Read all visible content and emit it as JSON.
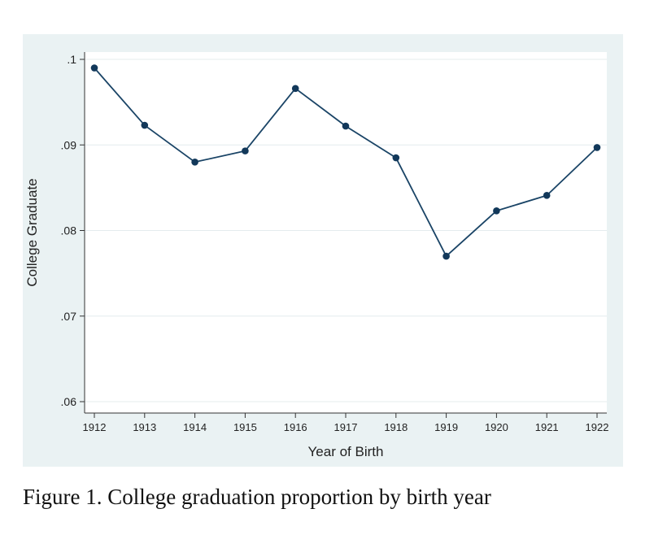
{
  "caption": "Figure 1.  College graduation proportion by birth year",
  "colors": {
    "line": "#1a4466",
    "marker": "#12385a",
    "panel": "#eaf2f3",
    "plot_area": "#ffffff",
    "grid": "#e4ecee"
  },
  "chart_data": {
    "type": "line",
    "title": "",
    "xlabel": "Year of Birth",
    "ylabel": "College Graduate",
    "x": [
      1912,
      1913,
      1914,
      1915,
      1916,
      1917,
      1918,
      1919,
      1920,
      1921,
      1922
    ],
    "x_tick_labels": [
      "1912",
      "1913",
      "1914",
      "1915",
      "1916",
      "1917",
      "1918",
      "1919",
      "1920",
      "1921",
      "1922"
    ],
    "y_ticks": [
      0.06,
      0.07,
      0.08,
      0.09,
      0.1
    ],
    "y_tick_labels": [
      ".06",
      ".07",
      ".08",
      ".09",
      ".1"
    ],
    "ylim": [
      0.06,
      0.1
    ],
    "grid": true,
    "legend": "none",
    "series": [
      {
        "values": [
          0.099,
          0.0923,
          0.088,
          0.0893,
          0.0966,
          0.0922,
          0.0885,
          0.077,
          0.0823,
          0.0841,
          0.0897
        ],
        "marker": "circle"
      }
    ]
  }
}
